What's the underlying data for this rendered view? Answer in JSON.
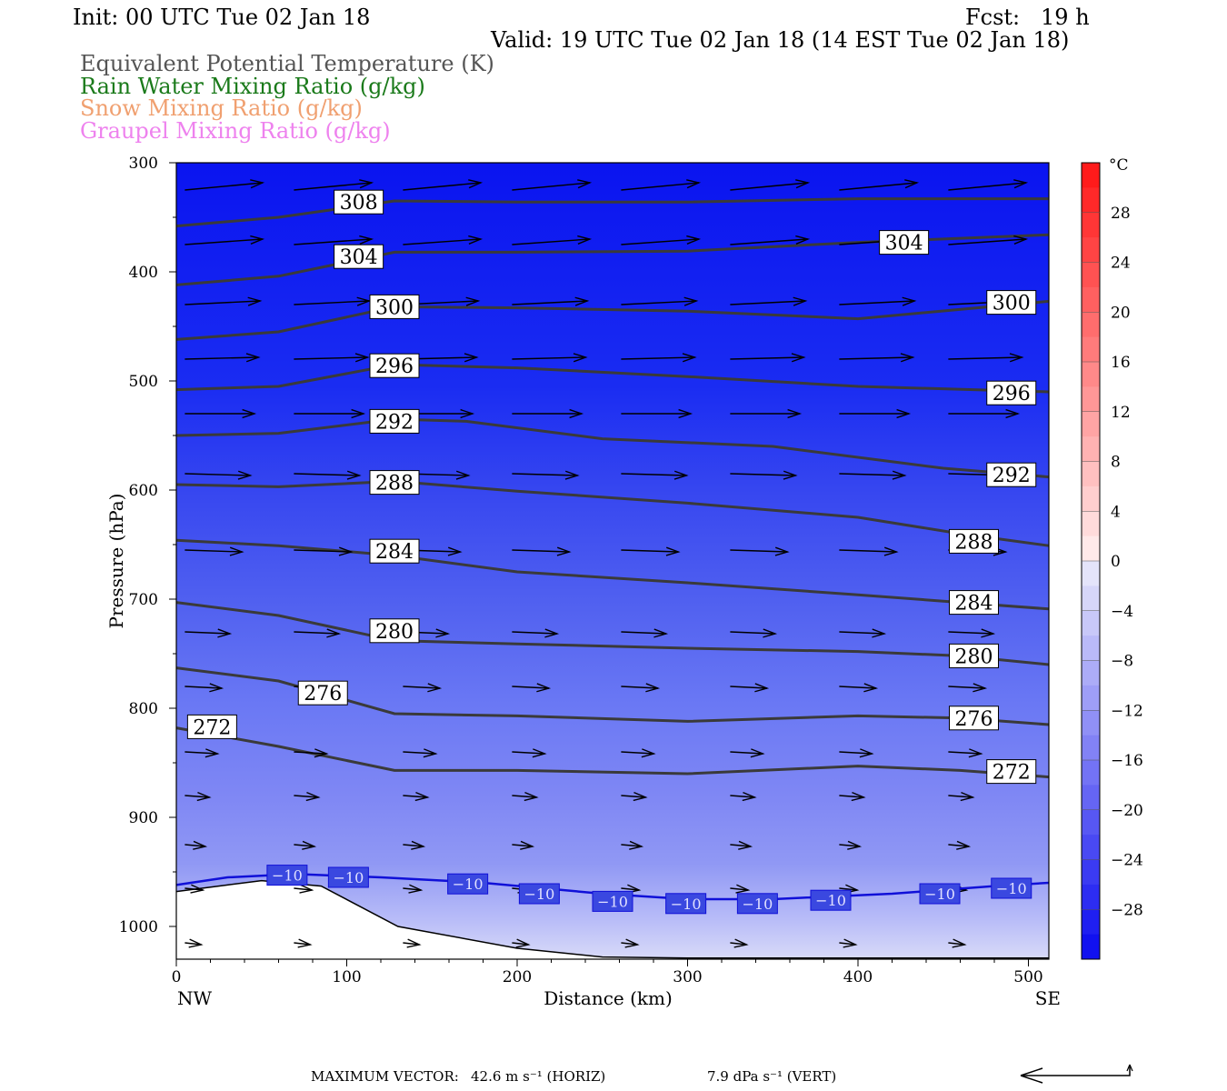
{
  "header": {
    "init": "Init: 00 UTC Tue 02 Jan 18",
    "fcst": "Fcst:   19 h",
    "valid": "Valid: 19 UTC Tue 02 Jan 18 (14 EST Tue 02 Jan 18)"
  },
  "legend": [
    {
      "label": "Equivalent Potential Temperature (K)",
      "color": "#555555"
    },
    {
      "label": "Rain Water Mixing Ratio (g/kg)",
      "color": "#1a7a1a"
    },
    {
      "label": "Snow Mixing Ratio (g/kg)",
      "color": "#f0a070"
    },
    {
      "label": "Graupel Mixing Ratio (g/kg)",
      "color": "#ee82ee"
    }
  ],
  "footer": {
    "max_vector_label": "MAXIMUM VECTOR:",
    "horiz": "42.6 m s⁻¹ (HORIZ)",
    "vert": "7.9 dPa s⁻¹ (VERT)"
  },
  "chart_data": {
    "type": "heatmap",
    "xlabel": "Distance (km)",
    "ylabel": "Pressure (hPa)",
    "x_left_label": "NW",
    "x_right_label": "SE",
    "xlim": [
      0,
      512
    ],
    "ylim": [
      1030,
      300
    ],
    "x_ticks": [
      0,
      100,
      200,
      300,
      400,
      500
    ],
    "y_ticks": [
      300,
      400,
      500,
      600,
      700,
      800,
      900,
      1000
    ],
    "colorbar": {
      "unit": "°C",
      "ticks": [
        28,
        24,
        20,
        16,
        12,
        8,
        4,
        0,
        -4,
        -8,
        -12,
        -16,
        -20,
        -24,
        -28
      ],
      "range": [
        -32,
        32
      ]
    },
    "theta_e_contours": [
      {
        "value": 308,
        "x": [
          0,
          60,
          128,
          200,
          300,
          400,
          512
        ],
        "p": [
          358,
          350,
          335,
          336,
          336,
          333,
          333
        ]
      },
      {
        "value": 304,
        "x": [
          0,
          60,
          128,
          200,
          300,
          400,
          512
        ],
        "p": [
          412,
          404,
          382,
          382,
          381,
          373,
          366
        ]
      },
      {
        "value": 300,
        "x": [
          0,
          60,
          128,
          200,
          300,
          400,
          512
        ],
        "p": [
          462,
          455,
          432,
          433,
          436,
          443,
          427
        ]
      },
      {
        "value": 296,
        "x": [
          0,
          60,
          128,
          200,
          300,
          400,
          512
        ],
        "p": [
          508,
          505,
          485,
          488,
          496,
          505,
          510
        ]
      },
      {
        "value": 292,
        "x": [
          0,
          60,
          128,
          170,
          250,
          350,
          450,
          512
        ],
        "p": [
          550,
          548,
          535,
          537,
          553,
          560,
          580,
          588
        ]
      },
      {
        "value": 288,
        "x": [
          0,
          60,
          128,
          200,
          300,
          400,
          460,
          512
        ],
        "p": [
          595,
          597,
          592,
          601,
          612,
          625,
          640,
          651
        ]
      },
      {
        "value": 284,
        "x": [
          0,
          60,
          128,
          200,
          300,
          400,
          460,
          512
        ],
        "p": [
          646,
          651,
          660,
          675,
          685,
          696,
          703,
          709
        ]
      },
      {
        "value": 280,
        "x": [
          0,
          60,
          128,
          200,
          300,
          400,
          460,
          512
        ],
        "p": [
          703,
          715,
          738,
          741,
          745,
          748,
          752,
          760
        ]
      },
      {
        "value": 276,
        "x": [
          0,
          60,
          128,
          200,
          300,
          400,
          460,
          512
        ],
        "p": [
          763,
          775,
          805,
          807,
          812,
          807,
          809,
          815
        ]
      },
      {
        "value": 272,
        "x": [
          0,
          60,
          128,
          200,
          300,
          400,
          460,
          512
        ],
        "p": [
          818,
          835,
          857,
          857,
          860,
          853,
          857,
          863
        ]
      }
    ],
    "contour_labels": [
      {
        "value": 308,
        "x": 107,
        "p": 336
      },
      {
        "value": 304,
        "x": 107,
        "p": 386
      },
      {
        "value": 304,
        "x": 427,
        "p": 373
      },
      {
        "value": 300,
        "x": 128,
        "p": 432
      },
      {
        "value": 300,
        "x": 490,
        "p": 428
      },
      {
        "value": 296,
        "x": 128,
        "p": 486
      },
      {
        "value": 296,
        "x": 490,
        "p": 511
      },
      {
        "value": 292,
        "x": 128,
        "p": 537
      },
      {
        "value": 292,
        "x": 490,
        "p": 586
      },
      {
        "value": 288,
        "x": 128,
        "p": 593
      },
      {
        "value": 288,
        "x": 468,
        "p": 647
      },
      {
        "value": 284,
        "x": 128,
        "p": 656
      },
      {
        "value": 284,
        "x": 468,
        "p": 703
      },
      {
        "value": 280,
        "x": 128,
        "p": 729
      },
      {
        "value": 280,
        "x": 468,
        "p": 752
      },
      {
        "value": 276,
        "x": 86,
        "p": 786
      },
      {
        "value": 276,
        "x": 468,
        "p": 809
      },
      {
        "value": 272,
        "x": 21,
        "p": 817
      },
      {
        "value": 272,
        "x": 490,
        "p": 858
      }
    ],
    "isotherm_minus10": {
      "value": -10,
      "x": [
        0,
        30,
        70,
        120,
        180,
        250,
        300,
        350,
        420,
        480,
        512
      ],
      "p": [
        962,
        955,
        952,
        955,
        960,
        970,
        975,
        975,
        970,
        963,
        960
      ],
      "labels": [
        {
          "x": 65,
          "p": 953
        },
        {
          "x": 101,
          "p": 955
        },
        {
          "x": 171,
          "p": 961
        },
        {
          "x": 213,
          "p": 970
        },
        {
          "x": 256,
          "p": 977
        },
        {
          "x": 299,
          "p": 979
        },
        {
          "x": 341,
          "p": 979
        },
        {
          "x": 384,
          "p": 976
        },
        {
          "x": 448,
          "p": 970
        },
        {
          "x": 490,
          "p": 965
        }
      ]
    },
    "terrain": {
      "x": [
        0,
        30,
        50,
        85,
        130,
        200,
        250,
        300,
        512
      ],
      "p": [
        968,
        962,
        958,
        963,
        1000,
        1020,
        1028,
        1029,
        1029
      ]
    },
    "wind_rows": [
      {
        "p": 325,
        "len": 0.95,
        "rise": -4
      },
      {
        "p": 375,
        "len": 0.95,
        "rise": -3
      },
      {
        "p": 430,
        "len": 0.92,
        "rise": -2
      },
      {
        "p": 480,
        "len": 0.9,
        "rise": -1
      },
      {
        "p": 530,
        "len": 0.85,
        "rise": 0
      },
      {
        "p": 585,
        "len": 0.8,
        "rise": 1
      },
      {
        "p": 655,
        "len": 0.7,
        "rise": 1
      },
      {
        "p": 730,
        "len": 0.55,
        "rise": 1
      },
      {
        "p": 780,
        "len": 0.45,
        "rise": 1
      },
      {
        "p": 840,
        "len": 0.4,
        "rise": 1
      },
      {
        "p": 880,
        "len": 0.3,
        "rise": 1
      },
      {
        "p": 925,
        "len": 0.25,
        "rise": 1
      },
      {
        "p": 965,
        "len": 0.22,
        "rise": 1
      },
      {
        "p": 1015,
        "len": 0.2,
        "rise": 1
      }
    ]
  }
}
